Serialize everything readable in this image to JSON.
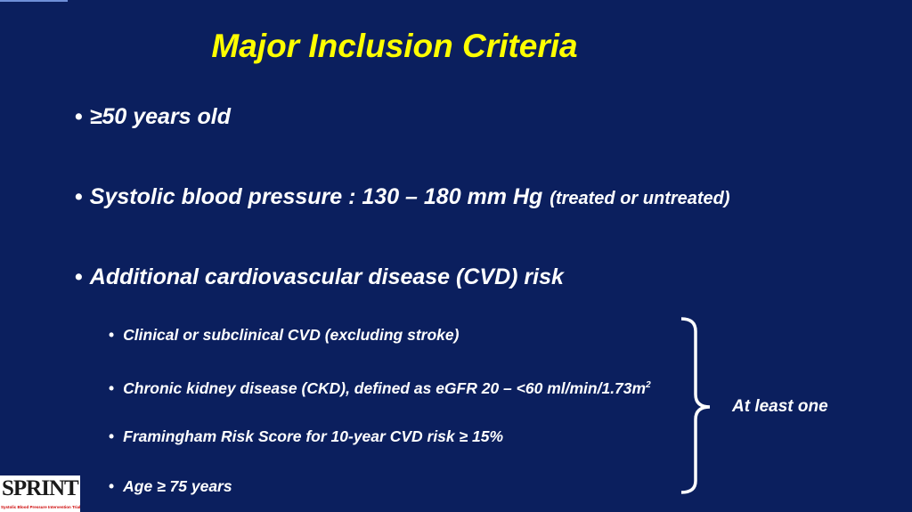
{
  "title": "Major Inclusion Criteria",
  "bullets": [
    {
      "text": "≥50 years old"
    },
    {
      "text": "Systolic blood pressure : 130 – 180 mm Hg",
      "note": "(treated or untreated)"
    },
    {
      "text": "Additional cardiovascular disease (CVD) risk"
    }
  ],
  "sub_bullets": [
    {
      "text": "Clinical or subclinical CVD (excluding stroke)"
    },
    {
      "text": "Chronic kidney disease (CKD), defined as eGFR 20 – <60 ml/min/1.73m",
      "superscript": "2"
    },
    {
      "text": "Framingham Risk Score for 10-year CVD risk ≥ 15%"
    },
    {
      "text": "Age ≥ 75 years"
    }
  ],
  "brace_label": "At least one",
  "logo": {
    "name": "SPRINT",
    "subtitle": "Systolic Blood Pressure Intervention Trial"
  }
}
